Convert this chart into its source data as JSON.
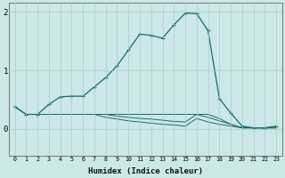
{
  "xlabel": "Humidex (Indice chaleur)",
  "bg_color": "#cce8e8",
  "line_color": "#1a6b6b",
  "grid_color": "#aacccc",
  "xlim": [
    -0.5,
    23.5
  ],
  "ylim": [
    -0.45,
    2.15
  ],
  "yticks": [
    0,
    1,
    2
  ],
  "xticks": [
    0,
    1,
    2,
    3,
    4,
    5,
    6,
    7,
    8,
    9,
    10,
    11,
    12,
    13,
    14,
    15,
    16,
    17,
    18,
    19,
    20,
    21,
    22,
    23
  ],
  "line1_x": [
    0,
    1,
    2,
    3,
    4,
    5,
    6,
    7,
    8,
    9,
    10,
    11,
    12,
    13,
    14,
    15,
    16,
    17,
    18,
    19,
    20,
    21,
    22,
    23
  ],
  "line1_y": [
    0.38,
    0.25,
    0.25,
    0.42,
    0.55,
    0.56,
    0.56,
    0.72,
    0.88,
    1.08,
    1.35,
    1.62,
    1.6,
    1.55,
    1.78,
    1.98,
    1.97,
    1.68,
    0.52,
    0.27,
    0.05,
    0.02,
    0.02,
    0.05
  ],
  "line2_x": [
    0,
    1,
    2,
    3,
    4,
    5,
    6,
    7,
    8,
    9,
    10,
    11,
    12,
    13,
    14,
    15,
    16,
    17,
    18,
    19,
    20,
    21,
    22,
    23
  ],
  "line2_y": [
    0.38,
    0.25,
    0.25,
    0.25,
    0.25,
    0.25,
    0.25,
    0.25,
    0.25,
    0.25,
    0.25,
    0.25,
    0.25,
    0.25,
    0.25,
    0.25,
    0.25,
    0.25,
    0.18,
    0.08,
    0.02,
    0.02,
    0.02,
    0.02
  ],
  "line3_x": [
    1,
    2,
    3,
    4,
    5,
    6,
    7,
    8,
    9,
    10,
    11,
    12,
    13,
    14,
    15,
    16,
    17,
    18,
    19,
    20,
    21,
    22,
    23
  ],
  "line3_y": [
    0.25,
    0.25,
    0.25,
    0.25,
    0.25,
    0.25,
    0.25,
    0.25,
    0.22,
    0.2,
    0.18,
    0.17,
    0.15,
    0.13,
    0.12,
    0.25,
    0.2,
    0.14,
    0.08,
    0.02,
    0.02,
    0.02,
    0.02
  ],
  "line4_x": [
    2,
    3,
    4,
    5,
    6,
    7,
    8,
    9,
    10,
    11,
    12,
    13,
    14,
    15,
    16,
    17,
    18,
    19,
    20,
    21,
    22,
    23
  ],
  "line4_y": [
    0.25,
    0.25,
    0.25,
    0.25,
    0.25,
    0.25,
    0.2,
    0.17,
    0.14,
    0.12,
    0.1,
    0.08,
    0.07,
    0.05,
    0.18,
    0.12,
    0.08,
    0.05,
    0.02,
    0.02,
    0.02,
    0.02
  ]
}
